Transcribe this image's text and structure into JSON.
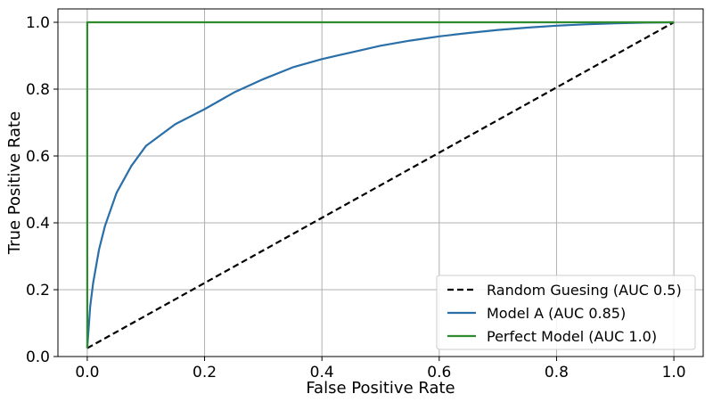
{
  "chart_data": {
    "type": "line",
    "title": "",
    "xlabel": "False Positive Rate",
    "ylabel": "True Positive Rate",
    "xlim": [
      -0.05,
      1.05
    ],
    "ylim": [
      0.0,
      1.04
    ],
    "x_ticks": [
      0.0,
      0.2,
      0.4,
      0.6,
      0.8,
      1.0
    ],
    "x_tick_labels": [
      "0.0",
      "0.2",
      "0.4",
      "0.6",
      "0.8",
      "1.0"
    ],
    "y_ticks": [
      0.0,
      0.2,
      0.4,
      0.6,
      0.8,
      1.0
    ],
    "y_tick_labels": [
      "0.0",
      "0.2",
      "0.4",
      "0.6",
      "0.8",
      "1.0"
    ],
    "grid": true,
    "legend_position": "lower-right",
    "series": [
      {
        "name": "Random Guesing (AUC 0.5)",
        "color": "#000000",
        "style": "dashed",
        "x": [
          0.0,
          1.0
        ],
        "y": [
          0.025,
          1.0
        ]
      },
      {
        "name": "Model A (AUC 0.85)",
        "color": "#2a6fa8",
        "style": "solid",
        "x": [
          0.0,
          0.005,
          0.01,
          0.02,
          0.03,
          0.05,
          0.075,
          0.1,
          0.15,
          0.2,
          0.25,
          0.3,
          0.35,
          0.4,
          0.45,
          0.5,
          0.55,
          0.6,
          0.65,
          0.7,
          0.75,
          0.8,
          0.85,
          0.9,
          0.95,
          1.0
        ],
        "y": [
          0.025,
          0.15,
          0.22,
          0.32,
          0.39,
          0.49,
          0.57,
          0.63,
          0.695,
          0.74,
          0.79,
          0.83,
          0.865,
          0.89,
          0.91,
          0.93,
          0.945,
          0.958,
          0.968,
          0.977,
          0.984,
          0.99,
          0.994,
          0.997,
          0.999,
          1.0
        ]
      },
      {
        "name": "Perfect Model (AUC 1.0)",
        "color": "#2e8b2e",
        "style": "solid",
        "x": [
          0.0,
          0.0,
          1.0
        ],
        "y": [
          0.025,
          1.0,
          1.0
        ]
      }
    ]
  }
}
